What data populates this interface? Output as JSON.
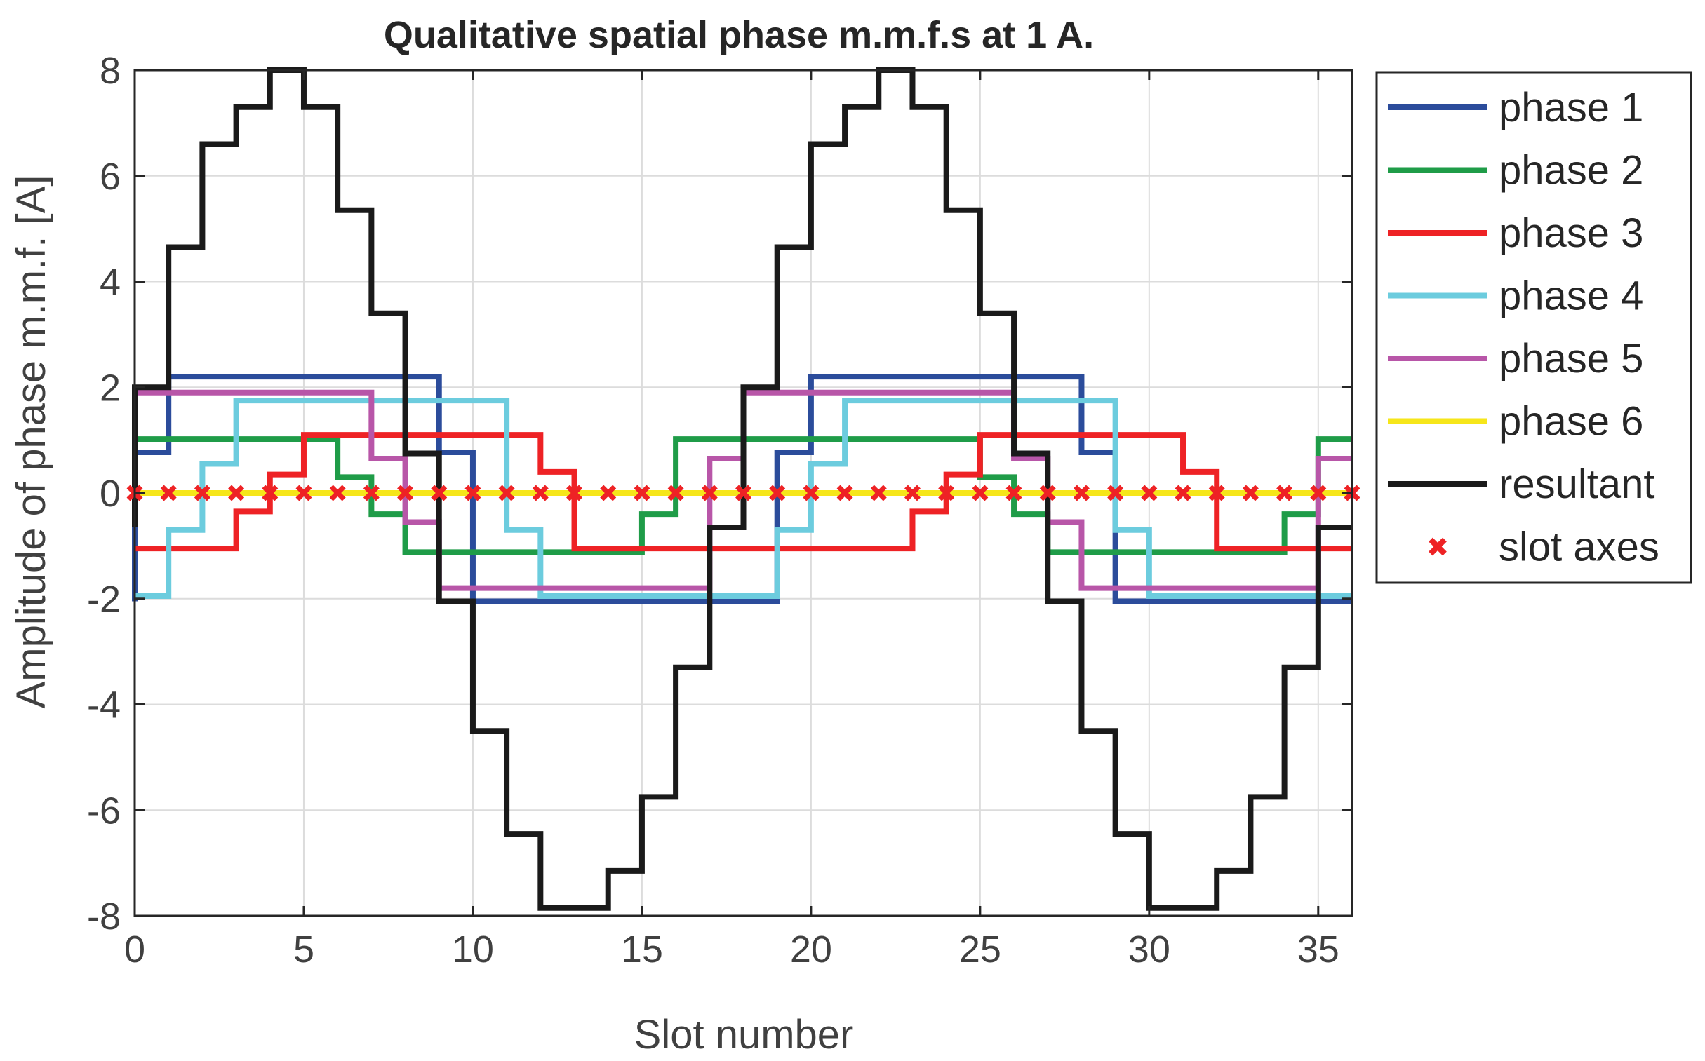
{
  "chart_data": {
    "type": "line",
    "title": "Qualitative spatial phase m.m.f.s at 1 A.",
    "xlabel": "Slot number",
    "ylabel": "Amplitude of phase m.m.f. [A]",
    "xlim": [
      0,
      36
    ],
    "ylim": [
      -8,
      8
    ],
    "xticks": [
      0,
      5,
      10,
      15,
      20,
      25,
      30,
      35
    ],
    "yticks": [
      8,
      6,
      4,
      2,
      0,
      -2,
      -4,
      -6,
      -8
    ],
    "xtick_labels": [
      "0",
      "5",
      "10",
      "15",
      "20",
      "25",
      "30",
      "35"
    ],
    "ytick_labels": [
      "8",
      "6",
      "4",
      "2",
      "0",
      "-2",
      "-4",
      "-6",
      "-8"
    ],
    "grid": true,
    "legend_position": "outside-right",
    "step": "pre",
    "x": [
      0,
      1,
      2,
      3,
      4,
      5,
      6,
      7,
      8,
      9,
      10,
      11,
      12,
      13,
      14,
      15,
      16,
      17,
      18,
      19,
      20,
      21,
      22,
      23,
      24,
      25,
      26,
      27,
      28,
      29,
      30,
      31,
      32,
      33,
      34,
      35,
      36
    ],
    "series": [
      {
        "name": "phase 1",
        "color": "#2b4c9b",
        "marker": "none",
        "values": [
          -2.05,
          0.77,
          2.2,
          2.2,
          2.2,
          2.2,
          2.2,
          2.2,
          2.2,
          2.2,
          0.77,
          -2.05,
          -2.05,
          -2.05,
          -2.05,
          -2.05,
          -2.05,
          -2.05,
          -2.05,
          -2.05,
          0.77,
          2.2,
          2.2,
          2.2,
          2.2,
          2.2,
          2.2,
          2.2,
          2.2,
          0.77,
          -2.05,
          -2.05,
          -2.05,
          -2.05,
          -2.05,
          -2.05,
          -2.05
        ]
      },
      {
        "name": "phase 2",
        "color": "#1f9c48",
        "marker": "none",
        "values": [
          1.02,
          1.02,
          1.02,
          1.02,
          1.02,
          1.02,
          1.02,
          0.3,
          -0.4,
          -1.12,
          -1.12,
          -1.12,
          -1.12,
          -1.12,
          -1.12,
          -1.12,
          -0.4,
          1.02,
          1.02,
          1.02,
          1.02,
          1.02,
          1.02,
          1.02,
          1.02,
          1.02,
          0.3,
          -0.4,
          -1.12,
          -1.12,
          -1.12,
          -1.12,
          -1.12,
          -1.12,
          -1.12,
          -0.4,
          1.02
        ]
      },
      {
        "name": "phase 3",
        "color": "#ee2225",
        "marker": "none",
        "values": [
          -1.05,
          -1.05,
          -1.05,
          -1.05,
          -0.35,
          0.35,
          1.1,
          1.1,
          1.1,
          1.1,
          1.1,
          1.1,
          1.1,
          0.4,
          -1.05,
          -1.05,
          -1.05,
          -1.05,
          -1.05,
          -1.05,
          -1.05,
          -1.05,
          -1.05,
          -1.05,
          -0.35,
          0.35,
          1.1,
          1.1,
          1.1,
          1.1,
          1.1,
          1.1,
          0.4,
          -1.05,
          -1.05,
          -1.05,
          -1.05
        ]
      },
      {
        "name": "phase 4",
        "color": "#6cccde",
        "marker": "none",
        "values": [
          -1.95,
          -1.95,
          -0.7,
          0.55,
          1.75,
          1.75,
          1.75,
          1.75,
          1.75,
          1.75,
          1.75,
          1.75,
          -0.7,
          -1.95,
          -1.95,
          -1.95,
          -1.95,
          -1.95,
          -1.95,
          -1.95,
          -0.7,
          0.55,
          1.75,
          1.75,
          1.75,
          1.75,
          1.75,
          1.75,
          1.75,
          1.75,
          -0.7,
          -1.95,
          -1.95,
          -1.95,
          -1.95,
          -1.95,
          -1.95
        ]
      },
      {
        "name": "phase 5",
        "color": "#b856a8",
        "marker": "none",
        "values": [
          1.9,
          1.9,
          1.9,
          1.9,
          1.9,
          1.9,
          1.9,
          1.9,
          0.65,
          -0.55,
          -1.8,
          -1.8,
          -1.8,
          -1.8,
          -1.8,
          -1.8,
          -1.8,
          -1.8,
          0.65,
          1.9,
          1.9,
          1.9,
          1.9,
          1.9,
          1.9,
          1.9,
          1.9,
          0.65,
          -0.55,
          -1.8,
          -1.8,
          -1.8,
          -1.8,
          -1.8,
          -1.8,
          -1.8,
          0.65
        ]
      },
      {
        "name": "phase 6",
        "color": "#f6e61a",
        "marker": "none",
        "values": [
          0,
          0,
          0,
          0,
          0,
          0,
          0,
          0,
          0,
          0,
          0,
          0,
          0,
          0,
          0,
          0,
          0,
          0,
          0,
          0,
          0,
          0,
          0,
          0,
          0,
          0,
          0,
          0,
          0,
          0,
          0,
          0,
          0,
          0,
          0,
          0,
          0
        ]
      },
      {
        "name": "resultant",
        "color": "#1a1a1a",
        "marker": "none",
        "values": [
          -0.65,
          2.0,
          4.65,
          6.6,
          7.3,
          8.0,
          7.3,
          5.35,
          3.4,
          0.75,
          -2.05,
          -4.5,
          -6.45,
          -7.85,
          -7.85,
          -7.15,
          -5.75,
          -3.3,
          -0.65,
          2.0,
          4.65,
          6.6,
          7.3,
          8.0,
          7.3,
          5.35,
          3.4,
          0.75,
          -2.05,
          -4.5,
          -6.45,
          -7.85,
          -7.85,
          -7.15,
          -5.75,
          -3.3,
          -0.65
        ]
      },
      {
        "name": "slot axes",
        "color": "#ee2225",
        "marker": "x",
        "line": "none",
        "values": [
          0,
          0,
          0,
          0,
          0,
          0,
          0,
          0,
          0,
          0,
          0,
          0,
          0,
          0,
          0,
          0,
          0,
          0,
          0,
          0,
          0,
          0,
          0,
          0,
          0,
          0,
          0,
          0,
          0,
          0,
          0,
          0,
          0,
          0,
          0,
          0,
          0
        ]
      }
    ]
  }
}
